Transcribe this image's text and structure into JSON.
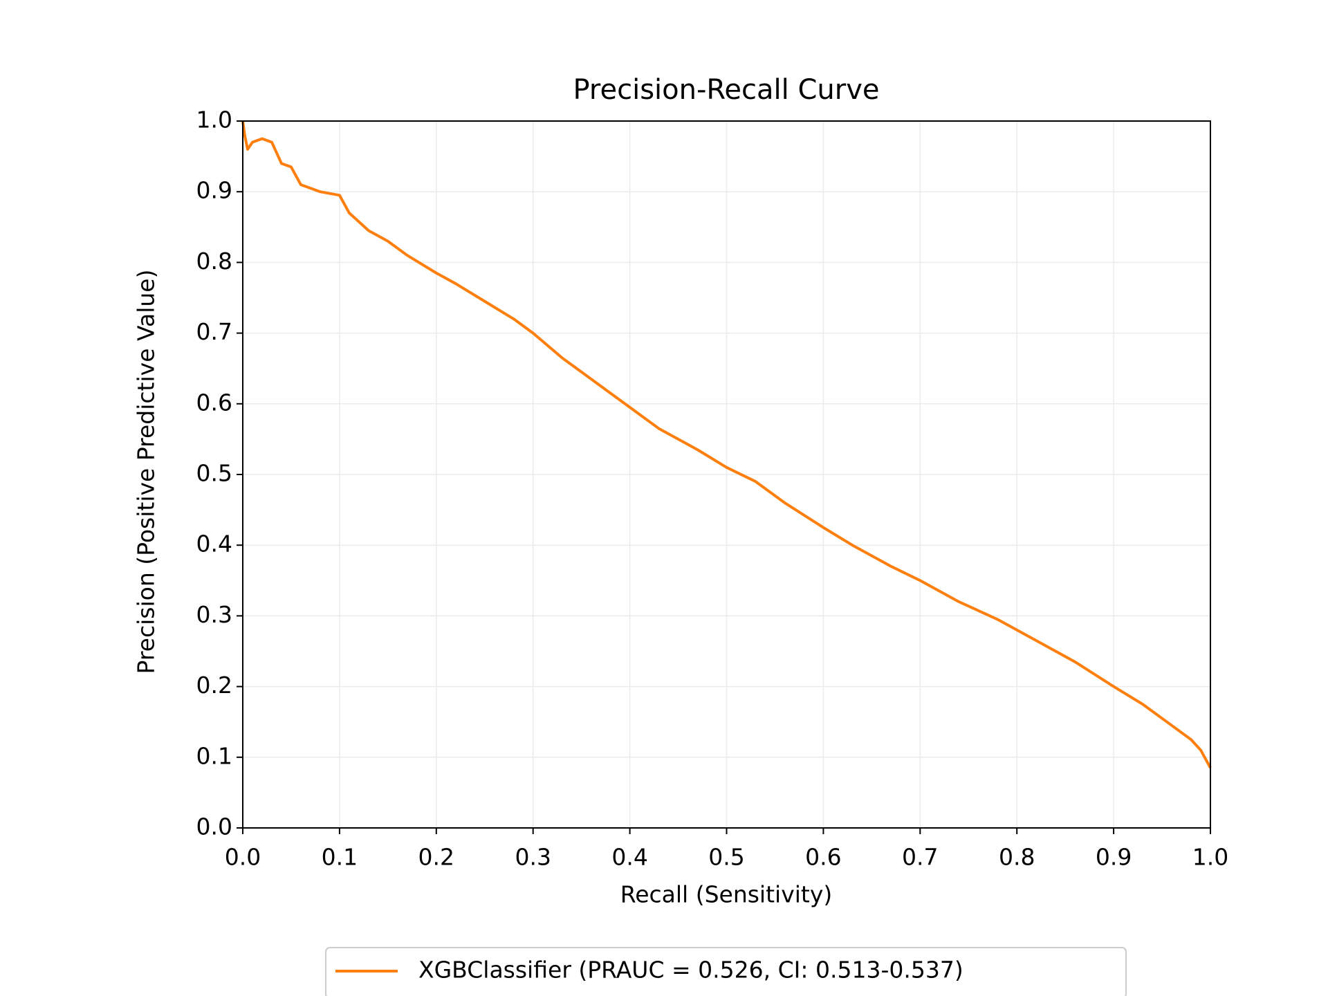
{
  "chart_data": {
    "type": "line",
    "title": "Precision-Recall Curve",
    "x_label": "Recall (Sensitivity)",
    "y_label": "Precision (Positive Predictive Value)",
    "x": [
      0,
      0.002,
      0.005,
      0.01,
      0.02,
      0.03,
      0.04,
      0.05,
      0.06,
      0.07,
      0.08,
      0.1,
      0.11,
      0.13,
      0.15,
      0.17,
      0.2,
      0.22,
      0.25,
      0.28,
      0.3,
      0.33,
      0.36,
      0.4,
      0.43,
      0.47,
      0.5,
      0.53,
      0.56,
      0.6,
      0.63,
      0.67,
      0.7,
      0.74,
      0.78,
      0.82,
      0.86,
      0.9,
      0.93,
      0.96,
      0.98,
      0.99,
      1.0
    ],
    "series": [
      {
        "name": "XGBClassifier (PRAUC = 0.526, CI: 0.513-0.537)",
        "color": "#ff7f0e",
        "values": [
          1.0,
          0.98,
          0.96,
          0.97,
          0.975,
          0.97,
          0.94,
          0.935,
          0.91,
          0.905,
          0.9,
          0.895,
          0.87,
          0.845,
          0.83,
          0.81,
          0.785,
          0.77,
          0.745,
          0.72,
          0.7,
          0.665,
          0.635,
          0.595,
          0.565,
          0.535,
          0.51,
          0.49,
          0.46,
          0.425,
          0.4,
          0.37,
          0.35,
          0.32,
          0.295,
          0.265,
          0.235,
          0.2,
          0.175,
          0.145,
          0.125,
          0.11,
          0.085
        ]
      }
    ],
    "xlim": [
      0,
      1
    ],
    "ylim": [
      0,
      1
    ],
    "xticks": [
      {
        "value": 0,
        "label": "0.0"
      },
      0.1,
      0.2,
      0.3,
      0.4,
      0.5,
      0.6,
      0.7,
      0.8,
      0.9,
      {
        "value": 1,
        "label": "1.0"
      }
    ],
    "yticks": [
      {
        "value": 0,
        "label": "0.0"
      },
      0.1,
      0.2,
      0.3,
      0.4,
      0.5,
      0.6,
      0.7,
      0.8,
      0.9,
      {
        "value": 1,
        "label": "1.0"
      }
    ],
    "grid": true,
    "legend": "bottom"
  }
}
